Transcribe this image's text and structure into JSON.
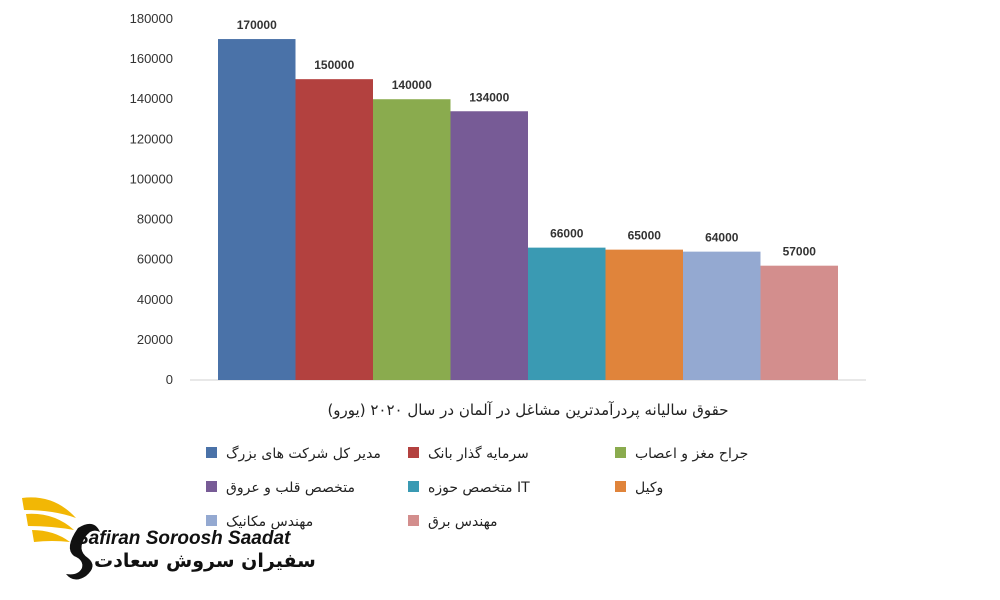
{
  "chart_data": {
    "type": "bar",
    "categories": [
      "مدیر کل شرکت های بزرگ",
      "سرمایه گذار بانک",
      "جراح مغز و اعصاب",
      "متخصص قلب و عروق",
      "متخصص حوزه IT",
      "وکیل",
      "مهندس مکانیک",
      "مهندس برق"
    ],
    "values": [
      170000,
      150000,
      140000,
      134000,
      66000,
      65000,
      64000,
      57000
    ],
    "value_labels": [
      "170000",
      "150000",
      "140000",
      "134000",
      "66000",
      "65000",
      "64000",
      "57000"
    ],
    "colors": [
      "#4a72a8",
      "#b3413f",
      "#8aab4e",
      "#775b96",
      "#3a9ab3",
      "#e0843b",
      "#94a9d1",
      "#d38e8d"
    ],
    "title": "",
    "xlabel": "حقوق سالیانه پردرآمدترین مشاغل در آلمان در سال ۲۰۲۰ (یورو)",
    "ylabel": "",
    "ylim": [
      0,
      180000
    ],
    "yticks": [
      "0",
      "20000",
      "40000",
      "60000",
      "80000",
      "100000",
      "120000",
      "140000",
      "160000",
      "180000"
    ],
    "grid": false,
    "legend_position": "bottom"
  },
  "logo": {
    "name_en": "Safiran Soroosh Saadat",
    "name_fa": "سفیران سروش سعادت"
  }
}
